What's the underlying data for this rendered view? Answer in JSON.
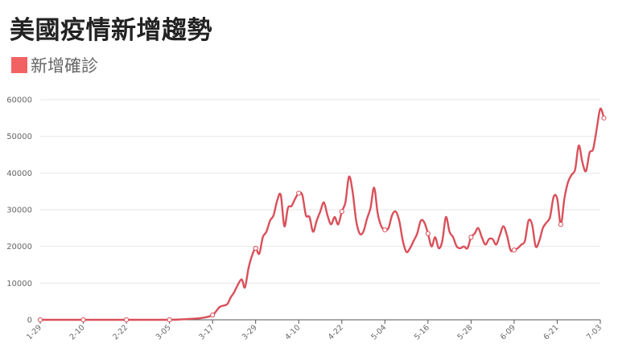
{
  "title": "美國疫情新增趨勢",
  "legend": {
    "label": "新增確診",
    "color": "#f26262"
  },
  "colors": {
    "line": "#d9505a",
    "grid": "#e6e6e6",
    "axis": "#555555",
    "marker_fill": "#ffffff"
  },
  "chart_data": {
    "type": "line",
    "title": "美國疫情新增趨勢",
    "xlabel": "",
    "ylabel": "",
    "ylim": [
      0,
      60000
    ],
    "yticks": [
      0,
      10000,
      20000,
      30000,
      40000,
      50000,
      60000
    ],
    "ytick_labels": [
      "0",
      "10000",
      "20000",
      "30000",
      "40000",
      "50000",
      "60000"
    ],
    "xtick_labels": [
      "1-29",
      "2-10",
      "2-22",
      "3-05",
      "3-17",
      "3-29",
      "4-10",
      "4-22",
      "5-04",
      "5-16",
      "5-28",
      "6-09",
      "6-21",
      "7-03"
    ],
    "grid": "horizontal",
    "legend_position": "top-left",
    "series": [
      {
        "name": "新增確診",
        "points": [
          [
            "1-29",
            0
          ],
          [
            "2-10",
            0
          ],
          [
            "2-22",
            0
          ],
          [
            "3-05",
            0
          ],
          [
            "3-10",
            200
          ],
          [
            "3-14",
            500
          ],
          [
            "3-17",
            1300
          ],
          [
            "3-19",
            3500
          ],
          [
            "3-21",
            4200
          ],
          [
            "3-22",
            6000
          ],
          [
            "3-23",
            7500
          ],
          [
            "3-25",
            11000
          ],
          [
            "3-26",
            8800
          ],
          [
            "3-27",
            14000
          ],
          [
            "3-28",
            17500
          ],
          [
            "3-29",
            19500
          ],
          [
            "3-30",
            18000
          ],
          [
            "3-31",
            22500
          ],
          [
            "4-01",
            24000
          ],
          [
            "4-02",
            27000
          ],
          [
            "4-03",
            28500
          ],
          [
            "4-04",
            32500
          ],
          [
            "4-05",
            34000
          ],
          [
            "4-06",
            25500
          ],
          [
            "4-07",
            30500
          ],
          [
            "4-08",
            31000
          ],
          [
            "4-09",
            33000
          ],
          [
            "4-10",
            34500
          ],
          [
            "4-11",
            34000
          ],
          [
            "4-12",
            28500
          ],
          [
            "4-13",
            28000
          ],
          [
            "4-14",
            24000
          ],
          [
            "4-15",
            27000
          ],
          [
            "4-16",
            29500
          ],
          [
            "4-17",
            32000
          ],
          [
            "4-18",
            28500
          ],
          [
            "4-19",
            26000
          ],
          [
            "4-20",
            28000
          ],
          [
            "4-21",
            26000
          ],
          [
            "4-22",
            29500
          ],
          [
            "4-23",
            32000
          ],
          [
            "4-24",
            39000
          ],
          [
            "4-25",
            35000
          ],
          [
            "4-26",
            27000
          ],
          [
            "4-27",
            23500
          ],
          [
            "4-28",
            24000
          ],
          [
            "4-29",
            27500
          ],
          [
            "4-30",
            30500
          ],
          [
            "5-01",
            36000
          ],
          [
            "5-02",
            29000
          ],
          [
            "5-03",
            25500
          ],
          [
            "5-04",
            24500
          ],
          [
            "5-05",
            25000
          ],
          [
            "5-06",
            28500
          ],
          [
            "5-07",
            29500
          ],
          [
            "5-08",
            27000
          ],
          [
            "5-09",
            21500
          ],
          [
            "5-10",
            18500
          ],
          [
            "5-11",
            19500
          ],
          [
            "5-12",
            21500
          ],
          [
            "5-13",
            23500
          ],
          [
            "5-14",
            27000
          ],
          [
            "5-15",
            26500
          ],
          [
            "5-16",
            23500
          ],
          [
            "5-17",
            20000
          ],
          [
            "5-18",
            22500
          ],
          [
            "5-19",
            19500
          ],
          [
            "5-20",
            21500
          ],
          [
            "5-21",
            28000
          ],
          [
            "5-22",
            24000
          ],
          [
            "5-23",
            22500
          ],
          [
            "5-24",
            20000
          ],
          [
            "5-25",
            19500
          ],
          [
            "5-26",
            20000
          ],
          [
            "5-27",
            19500
          ],
          [
            "5-28",
            22500
          ],
          [
            "5-29",
            23500
          ],
          [
            "5-30",
            25000
          ],
          [
            "5-31",
            22500
          ],
          [
            "6-01",
            20500
          ],
          [
            "6-02",
            22000
          ],
          [
            "6-03",
            22000
          ],
          [
            "6-04",
            20500
          ],
          [
            "6-05",
            23000
          ],
          [
            "6-06",
            25500
          ],
          [
            "6-07",
            23000
          ],
          [
            "6-08",
            19000
          ],
          [
            "6-09",
            19000
          ],
          [
            "6-10",
            19500
          ],
          [
            "6-11",
            20500
          ],
          [
            "6-12",
            21500
          ],
          [
            "6-13",
            27000
          ],
          [
            "6-14",
            26000
          ],
          [
            "6-15",
            20000
          ],
          [
            "6-16",
            21500
          ],
          [
            "6-17",
            25000
          ],
          [
            "6-18",
            26500
          ],
          [
            "6-19",
            28000
          ],
          [
            "6-20",
            33500
          ],
          [
            "6-21",
            33000
          ],
          [
            "6-22",
            26000
          ],
          [
            "6-23",
            33000
          ],
          [
            "6-24",
            37500
          ],
          [
            "6-25",
            39500
          ],
          [
            "6-26",
            41000
          ],
          [
            "6-27",
            47500
          ],
          [
            "6-28",
            43000
          ],
          [
            "6-29",
            40500
          ],
          [
            "6-30",
            45500
          ],
          [
            "7-01",
            46500
          ],
          [
            "7-02",
            52000
          ],
          [
            "7-03",
            57500
          ],
          [
            "7-04",
            55000
          ]
        ],
        "marked_points": [
          "1-29",
          "2-10",
          "2-22",
          "3-05",
          "3-17",
          "3-29",
          "4-10",
          "4-22",
          "5-04",
          "5-16",
          "5-28",
          "6-09",
          "6-22",
          "7-04"
        ]
      }
    ]
  }
}
